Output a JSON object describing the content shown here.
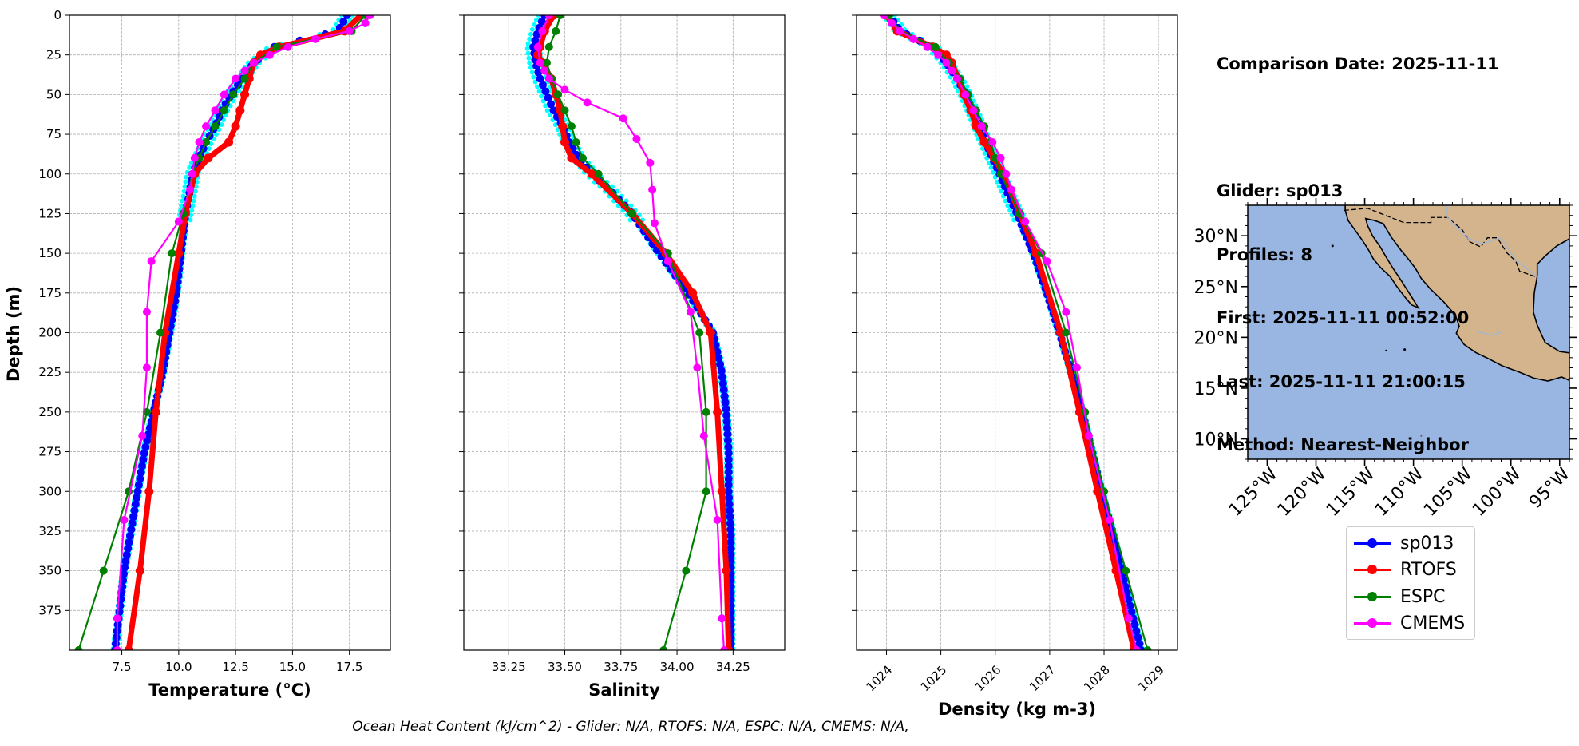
{
  "info": {
    "lines": [
      "Comparison Date: 2025-11-11",
      "",
      "Glider: sp013",
      "Profiles: 8",
      "First: 2025-11-11 00:52:00",
      "Last: 2025-11-11 21:00:15",
      "Method: Nearest-Neighbor"
    ]
  },
  "footer": "Ocean Heat Content (kJ/cm^2) - Glider: N/A,  RTOFS: N/A,  ESPC: N/A,  CMEMS: N/A,",
  "colors": {
    "glider": "#0000ff",
    "glider_individual": "#00ffff",
    "rtofs": "#ff0000",
    "espc": "#008000",
    "cmems": "#ff00ff",
    "ocean": "#99b5e1",
    "land": "#d3b48c"
  },
  "legend": [
    {
      "name": "sp013",
      "color": "#0000ff"
    },
    {
      "name": "RTOFS",
      "color": "#ff0000"
    },
    {
      "name": "ESPC",
      "color": "#008000"
    },
    {
      "name": "CMEMS",
      "color": "#ff00ff"
    }
  ],
  "chart_data": [
    {
      "type": "line",
      "xlabel": "Temperature (°C)",
      "ylabel": "Depth (m)",
      "xlim": [
        5.2,
        19.3
      ],
      "ylim": [
        400,
        0
      ],
      "xticks": [
        "7.5",
        "10.0",
        "12.5",
        "15.0",
        "17.5"
      ],
      "yticks": [
        "0",
        "25",
        "50",
        "75",
        "100",
        "125",
        "150",
        "175",
        "200",
        "225",
        "250",
        "275",
        "300",
        "325",
        "350",
        "375"
      ],
      "grid": true,
      "series": [
        {
          "name": "sp013",
          "depth": [
            0,
            10,
            20,
            30,
            40,
            50,
            60,
            70,
            80,
            90,
            100,
            110,
            125,
            150,
            175,
            200,
            225,
            250,
            275,
            300,
            325,
            350,
            375,
            400
          ],
          "values": [
            17.4,
            17.0,
            14.2,
            13.3,
            12.8,
            12.3,
            11.9,
            11.6,
            11.2,
            10.9,
            10.6,
            10.5,
            10.3,
            10.1,
            9.9,
            9.6,
            9.3,
            8.9,
            8.5,
            8.2,
            7.9,
            7.6,
            7.4,
            7.2
          ]
        },
        {
          "name": "RTOFS",
          "depth": [
            0,
            10,
            20,
            25,
            30,
            40,
            50,
            60,
            70,
            80,
            90,
            100,
            125,
            150,
            200,
            250,
            300,
            350,
            400
          ],
          "values": [
            18.0,
            17.3,
            14.4,
            13.6,
            13.3,
            13.1,
            12.9,
            12.7,
            12.5,
            12.2,
            11.3,
            10.7,
            10.3,
            10.0,
            9.4,
            9.0,
            8.7,
            8.3,
            7.8
          ]
        },
        {
          "name": "ESPC",
          "depth": [
            0,
            10,
            20,
            30,
            40,
            50,
            60,
            70,
            80,
            90,
            100,
            125,
            150,
            200,
            250,
            300,
            350,
            400
          ],
          "values": [
            18.2,
            17.6,
            14.3,
            13.3,
            12.9,
            12.4,
            12.0,
            11.6,
            11.2,
            10.9,
            10.6,
            10.2,
            9.7,
            9.2,
            8.6,
            7.8,
            6.7,
            5.6
          ]
        },
        {
          "name": "CMEMS",
          "depth": [
            0,
            5,
            10,
            15,
            20,
            25,
            30,
            35,
            40,
            50,
            60,
            70,
            80,
            90,
            100,
            110,
            130,
            155,
            187,
            222,
            265,
            318,
            380,
            400
          ],
          "values": [
            18.4,
            18.2,
            17.5,
            16.0,
            14.8,
            14.0,
            13.3,
            12.9,
            12.5,
            12.0,
            11.6,
            11.2,
            10.9,
            10.7,
            10.6,
            10.5,
            10.0,
            8.8,
            8.6,
            8.6,
            8.4,
            7.6,
            7.3,
            7.3
          ]
        }
      ]
    },
    {
      "type": "line",
      "xlabel": "Salinity",
      "xlim": [
        33.05,
        34.48
      ],
      "ylim": [
        400,
        0
      ],
      "xticks": [
        "33.25",
        "33.50",
        "33.75",
        "34.00",
        "34.25"
      ],
      "grid": true,
      "series": [
        {
          "name": "sp013",
          "depth": [
            0,
            10,
            20,
            30,
            40,
            50,
            60,
            70,
            80,
            90,
            100,
            110,
            125,
            150,
            175,
            200,
            225,
            250,
            275,
            300,
            325,
            350,
            375,
            400
          ],
          "values": [
            33.41,
            33.38,
            33.36,
            33.37,
            33.39,
            33.42,
            33.45,
            33.49,
            33.52,
            33.56,
            33.62,
            33.7,
            33.8,
            33.92,
            34.05,
            34.16,
            34.2,
            34.22,
            34.23,
            34.23,
            34.24,
            34.24,
            34.24,
            34.24
          ]
        },
        {
          "name": "RTOFS",
          "depth": [
            0,
            10,
            20,
            25,
            30,
            40,
            50,
            60,
            70,
            80,
            90,
            100,
            125,
            150,
            175,
            200,
            250,
            300,
            350,
            400
          ],
          "values": [
            33.45,
            33.41,
            33.39,
            33.38,
            33.4,
            33.44,
            33.46,
            33.48,
            33.49,
            33.5,
            33.53,
            33.62,
            33.8,
            33.95,
            34.07,
            34.15,
            34.18,
            34.2,
            34.22,
            34.23
          ]
        },
        {
          "name": "ESPC",
          "depth": [
            0,
            10,
            20,
            30,
            40,
            50,
            60,
            70,
            80,
            90,
            100,
            125,
            150,
            200,
            250,
            300,
            350,
            400
          ],
          "values": [
            33.48,
            33.46,
            33.43,
            33.42,
            33.44,
            33.47,
            33.5,
            33.53,
            33.55,
            33.58,
            33.65,
            33.8,
            33.96,
            34.1,
            34.13,
            34.13,
            34.04,
            33.94
          ]
        },
        {
          "name": "CMEMS",
          "depth": [
            0,
            10,
            20,
            30,
            35,
            40,
            47,
            55,
            65,
            78,
            93,
            110,
            131,
            155,
            187,
            222,
            265,
            318,
            380,
            400
          ],
          "values": [
            33.43,
            33.4,
            33.38,
            33.39,
            33.41,
            33.43,
            33.5,
            33.6,
            33.76,
            33.82,
            33.88,
            33.89,
            33.9,
            33.96,
            34.06,
            34.09,
            34.12,
            34.18,
            34.2,
            34.21
          ]
        }
      ]
    },
    {
      "type": "line",
      "xlabel": "Density (kg m-3)",
      "xlim": [
        1023.45,
        1029.35
      ],
      "ylim": [
        400,
        0
      ],
      "xticks": [
        "1024",
        "1025",
        "1026",
        "1027",
        "1028",
        "1029"
      ],
      "grid": true,
      "series": [
        {
          "name": "sp013",
          "depth": [
            0,
            10,
            20,
            30,
            40,
            50,
            60,
            70,
            80,
            90,
            100,
            110,
            125,
            150,
            175,
            200,
            225,
            250,
            275,
            300,
            325,
            350,
            375,
            400
          ],
          "values": [
            1024.05,
            1024.25,
            1024.85,
            1025.1,
            1025.3,
            1025.45,
            1025.58,
            1025.7,
            1025.82,
            1025.95,
            1026.08,
            1026.2,
            1026.4,
            1026.7,
            1026.95,
            1027.18,
            1027.4,
            1027.6,
            1027.78,
            1027.95,
            1028.15,
            1028.32,
            1028.5,
            1028.68
          ]
        },
        {
          "name": "RTOFS",
          "depth": [
            0,
            10,
            20,
            25,
            30,
            40,
            50,
            60,
            70,
            80,
            90,
            100,
            125,
            150,
            200,
            250,
            300,
            350,
            400
          ],
          "values": [
            1024.0,
            1024.2,
            1024.85,
            1025.1,
            1025.2,
            1025.32,
            1025.42,
            1025.55,
            1025.65,
            1025.8,
            1025.98,
            1026.15,
            1026.45,
            1026.75,
            1027.2,
            1027.55,
            1027.88,
            1028.22,
            1028.55
          ]
        },
        {
          "name": "ESPC",
          "depth": [
            0,
            10,
            20,
            30,
            40,
            50,
            60,
            70,
            80,
            90,
            100,
            125,
            150,
            200,
            250,
            300,
            350,
            400
          ],
          "values": [
            1024.05,
            1024.25,
            1024.9,
            1025.15,
            1025.35,
            1025.5,
            1025.65,
            1025.8,
            1025.92,
            1026.0,
            1026.1,
            1026.45,
            1026.85,
            1027.3,
            1027.65,
            1028.0,
            1028.4,
            1028.8
          ]
        },
        {
          "name": "CMEMS",
          "depth": [
            0,
            5,
            10,
            15,
            20,
            25,
            30,
            35,
            40,
            50,
            60,
            70,
            80,
            90,
            100,
            110,
            130,
            155,
            187,
            222,
            265,
            318,
            380,
            400
          ],
          "values": [
            1023.95,
            1024.1,
            1024.25,
            1024.5,
            1024.75,
            1024.95,
            1025.1,
            1025.2,
            1025.3,
            1025.45,
            1025.6,
            1025.75,
            1025.95,
            1026.1,
            1026.2,
            1026.3,
            1026.55,
            1026.95,
            1027.3,
            1027.5,
            1027.72,
            1028.1,
            1028.45,
            1028.6
          ]
        }
      ]
    },
    {
      "type": "map",
      "lon_range": [
        -127,
        -94
      ],
      "lat_range": [
        8,
        33
      ],
      "xticks": [
        "125°W",
        "120°W",
        "115°W",
        "110°W",
        "105°W",
        "100°W",
        "95°W"
      ],
      "yticks": [
        "30°N",
        "25°N",
        "20°N",
        "15°N",
        "10°N"
      ]
    }
  ]
}
